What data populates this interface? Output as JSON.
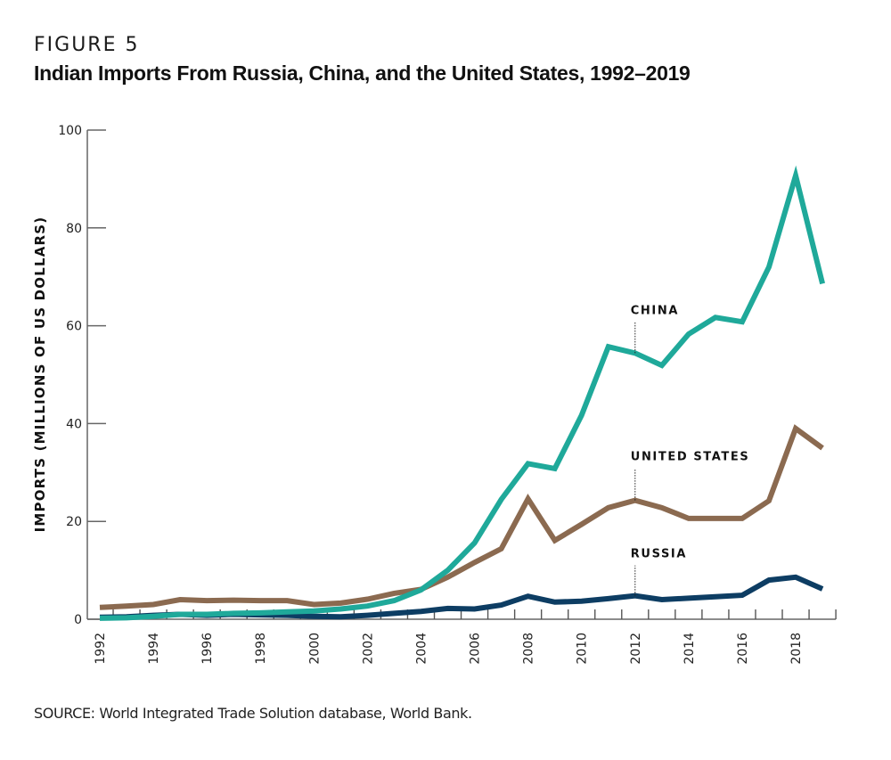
{
  "figure_label": "FIGURE 5",
  "source": "SOURCE: World Integrated Trade Solution database, World Bank.",
  "chart_data": {
    "type": "line",
    "title": "Indian Imports From Russia, China, and the United States, 1992–2019",
    "xlabel": "",
    "ylabel": "IMPORTS (MILLIONS OF US DOLLARS)",
    "ylim": [
      0,
      100
    ],
    "xlim": [
      1992,
      2019
    ],
    "grid": false,
    "legend": "inline-labels",
    "yticks": [
      0,
      20,
      40,
      60,
      80,
      100
    ],
    "xtick_labels": [
      "1992",
      "1994",
      "1996",
      "1998",
      "2000",
      "2002",
      "2004",
      "2006",
      "2008",
      "2010",
      "2012",
      "2014",
      "2016",
      "2018"
    ],
    "x": [
      1992,
      1993,
      1994,
      1995,
      1996,
      1997,
      1998,
      1999,
      2000,
      2001,
      2002,
      2003,
      2004,
      2005,
      2006,
      2007,
      2008,
      2009,
      2010,
      2011,
      2012,
      2013,
      2014,
      2015,
      2016,
      2017,
      2018,
      2019
    ],
    "series": [
      {
        "name": "CHINA",
        "color": "#1fa99a",
        "label_anchor_year": 2012,
        "values": [
          0.2,
          0.3,
          0.6,
          1.0,
          1.0,
          1.2,
          1.3,
          1.5,
          1.7,
          2.1,
          2.7,
          3.8,
          6.0,
          10.0,
          15.6,
          24.5,
          31.8,
          30.8,
          41.7,
          55.7,
          54.4,
          51.9,
          58.3,
          61.7,
          60.8,
          72.0,
          90.7,
          68.6
        ]
      },
      {
        "name": "UNITED STATES",
        "color": "#8b6a50",
        "label_anchor_year": 2012,
        "values": [
          2.4,
          2.7,
          3.0,
          4.0,
          3.8,
          3.9,
          3.8,
          3.8,
          3.0,
          3.3,
          4.1,
          5.3,
          6.1,
          8.6,
          11.6,
          14.4,
          24.6,
          16.1,
          19.4,
          22.8,
          24.3,
          22.8,
          20.6,
          20.6,
          20.6,
          24.2,
          39.0,
          35.0
        ]
      },
      {
        "name": "RUSSIA",
        "color": "#0d3d63",
        "label_anchor_year": 2012,
        "values": [
          0.4,
          0.5,
          0.8,
          1.0,
          0.8,
          1.0,
          0.9,
          0.8,
          0.6,
          0.5,
          0.8,
          1.2,
          1.6,
          2.2,
          2.1,
          2.9,
          4.7,
          3.5,
          3.7,
          4.2,
          4.8,
          4.0,
          4.3,
          4.6,
          4.9,
          8.0,
          8.6,
          6.2
        ]
      }
    ]
  }
}
